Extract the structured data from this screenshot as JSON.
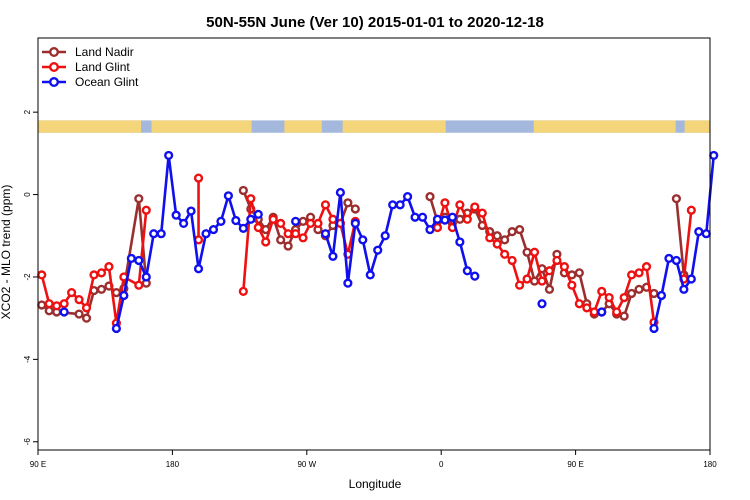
{
  "chart_data": {
    "type": "line",
    "title": "50N-55N June (Ver 10)   2015-01-01 to 2020-12-18",
    "xlabel": "Longitude",
    "ylabel": "XCO2 - MLO trend (ppm)",
    "ylim": [
      -6.2,
      3.8
    ],
    "xlim_degrees_east_from_90E": [
      0,
      450
    ],
    "x_ticks": [
      {
        "pos": 0,
        "label": "90 E"
      },
      {
        "pos": 90,
        "label": "180"
      },
      {
        "pos": 180,
        "label": "90 W"
      },
      {
        "pos": 270,
        "label": "0"
      },
      {
        "pos": 360,
        "label": "90 E"
      },
      {
        "pos": 450,
        "label": "180"
      }
    ],
    "y_ticks": [
      -6,
      -4,
      -2,
      0,
      2
    ],
    "grid": false,
    "legend": "top-left",
    "landmask_band": {
      "y_range": [
        1.5,
        1.8
      ],
      "ocean_color": "#a3b8dc",
      "land_color": "#f5d57a",
      "land_segments": [
        [
          0,
          69
        ],
        [
          76,
          143
        ],
        [
          165,
          190
        ],
        [
          204,
          273
        ],
        [
          332,
          427
        ],
        [
          433,
          450
        ]
      ]
    },
    "series": [
      {
        "name": "Land Nadir",
        "color": "#9b2f2f",
        "segments": [
          [
            [
              2.5,
              -2.68
            ],
            [
              7.5,
              -2.82
            ],
            [
              12.5,
              -2.85
            ],
            [
              27.5,
              -2.9
            ],
            [
              32.5,
              -3.0
            ],
            [
              37.5,
              -2.33
            ],
            [
              42.5,
              -2.3
            ],
            [
              47.5,
              -2.22
            ],
            [
              52.5,
              -2.38
            ],
            [
              57.5,
              -2.28
            ],
            [
              67.5,
              -0.1
            ],
            [
              72.5,
              -2.15
            ]
          ],
          [
            [
              137.5,
              0.1
            ],
            [
              142.5,
              -0.35
            ],
            [
              147.5,
              -0.6
            ],
            [
              152.5,
              -0.85
            ],
            [
              157.5,
              -0.55
            ],
            [
              162.5,
              -1.1
            ],
            [
              167.5,
              -1.25
            ],
            [
              172.5,
              -0.85
            ],
            [
              177.5,
              -0.65
            ],
            [
              182.5,
              -0.55
            ],
            [
              187.5,
              -0.85
            ],
            [
              192.5,
              -1.0
            ],
            [
              197.5,
              -0.75
            ],
            [
              202.5,
              -0.7
            ],
            [
              207.5,
              -0.2
            ],
            [
              212.5,
              -0.35
            ]
          ],
          [
            [
              262.5,
              -0.05
            ],
            [
              267.5,
              -0.65
            ],
            [
              272.5,
              -0.55
            ],
            [
              277.5,
              -0.7
            ],
            [
              282.5,
              -0.6
            ],
            [
              287.5,
              -0.45
            ],
            [
              292.5,
              -0.35
            ],
            [
              297.5,
              -0.75
            ],
            [
              302.5,
              -0.9
            ],
            [
              307.5,
              -1.0
            ],
            [
              312.5,
              -1.1
            ],
            [
              317.5,
              -0.9
            ],
            [
              322.5,
              -0.85
            ],
            [
              327.5,
              -1.4
            ],
            [
              332.5,
              -2.1
            ],
            [
              337.5,
              -1.8
            ],
            [
              342.5,
              -2.3
            ],
            [
              347.5,
              -1.45
            ],
            [
              352.5,
              -1.9
            ],
            [
              357.5,
              -1.95
            ],
            [
              362.5,
              -1.9
            ],
            [
              367.5,
              -2.65
            ],
            [
              372.5,
              -2.9
            ],
            [
              377.5,
              -2.85
            ],
            [
              382.5,
              -2.65
            ],
            [
              387.5,
              -2.9
            ],
            [
              392.5,
              -2.95
            ],
            [
              397.5,
              -2.4
            ],
            [
              402.5,
              -2.3
            ],
            [
              407.5,
              -2.25
            ],
            [
              412.5,
              -2.4
            ]
          ],
          [
            [
              427.5,
              -0.1
            ],
            [
              432.5,
              -1.95
            ]
          ]
        ]
      },
      {
        "name": "Land Glint",
        "color": "#ee1111",
        "segments": [
          [
            [
              2.5,
              -1.95
            ],
            [
              7.5,
              -2.65
            ],
            [
              12.5,
              -2.7
            ],
            [
              17.5,
              -2.65
            ],
            [
              22.5,
              -2.38
            ],
            [
              27.5,
              -2.55
            ],
            [
              32.5,
              -2.75
            ],
            [
              37.5,
              -1.95
            ],
            [
              42.5,
              -1.9
            ],
            [
              47.5,
              -1.75
            ],
            [
              52.5,
              -3.12
            ],
            [
              57.5,
              -2.0
            ],
            [
              67.5,
              -2.2
            ],
            [
              72.5,
              -0.38
            ]
          ],
          [
            [
              107.5,
              -1.1
            ],
            [
              107.5,
              0.4
            ]
          ],
          [
            [
              137.5,
              -2.35
            ],
            [
              142.5,
              -0.1
            ],
            [
              147.5,
              -0.8
            ],
            [
              152.5,
              -1.15
            ],
            [
              157.5,
              -0.6
            ],
            [
              162.5,
              -0.7
            ],
            [
              167.5,
              -0.95
            ],
            [
              172.5,
              -0.95
            ],
            [
              177.5,
              -1.05
            ],
            [
              182.5,
              -0.7
            ],
            [
              187.5,
              -0.7
            ],
            [
              192.5,
              -0.25
            ],
            [
              197.5,
              -0.6
            ],
            [
              202.5,
              -0.7
            ],
            [
              207.5,
              -1.45
            ],
            [
              212.5,
              -0.65
            ]
          ],
          [
            [
              267.5,
              -0.8
            ],
            [
              272.5,
              -0.2
            ],
            [
              277.5,
              -0.8
            ],
            [
              282.5,
              -0.25
            ],
            [
              287.5,
              -0.6
            ],
            [
              292.5,
              -0.3
            ],
            [
              297.5,
              -0.45
            ],
            [
              302.5,
              -1.05
            ],
            [
              307.5,
              -1.2
            ],
            [
              312.5,
              -1.45
            ],
            [
              317.5,
              -1.6
            ],
            [
              322.5,
              -2.2
            ],
            [
              327.5,
              -2.05
            ],
            [
              332.5,
              -1.4
            ],
            [
              337.5,
              -2.1
            ],
            [
              342.5,
              -1.85
            ],
            [
              347.5,
              -1.6
            ],
            [
              352.5,
              -1.75
            ],
            [
              357.5,
              -2.2
            ],
            [
              362.5,
              -2.65
            ],
            [
              367.5,
              -2.75
            ],
            [
              372.5,
              -2.85
            ],
            [
              377.5,
              -2.35
            ],
            [
              382.5,
              -2.5
            ],
            [
              387.5,
              -2.85
            ],
            [
              392.5,
              -2.5
            ],
            [
              397.5,
              -1.95
            ],
            [
              402.5,
              -1.9
            ],
            [
              407.5,
              -1.75
            ],
            [
              412.5,
              -3.1
            ]
          ],
          [
            [
              432.5,
              -2.05
            ],
            [
              437.5,
              -0.38
            ]
          ]
        ]
      },
      {
        "name": "Ocean Glint",
        "color": "#1010ee",
        "segments": [
          [
            [
              17.5,
              -2.85
            ]
          ],
          [
            [
              52.5,
              -3.25
            ],
            [
              57.5,
              -2.45
            ],
            [
              62.5,
              -1.55
            ],
            [
              67.5,
              -1.6
            ],
            [
              72.5,
              -2.0
            ],
            [
              77.5,
              -0.95
            ],
            [
              82.5,
              -0.95
            ],
            [
              87.5,
              0.95
            ],
            [
              92.5,
              -0.5
            ],
            [
              97.5,
              -0.7
            ],
            [
              102.5,
              -0.4
            ],
            [
              107.5,
              -1.8
            ],
            [
              112.5,
              -0.95
            ],
            [
              117.5,
              -0.85
            ],
            [
              122.5,
              -0.65
            ],
            [
              127.5,
              -0.03
            ],
            [
              132.5,
              -0.63
            ],
            [
              137.5,
              -0.82
            ],
            [
              142.5,
              -0.6
            ],
            [
              147.5,
              -0.48
            ]
          ],
          [
            [
              172.5,
              -0.65
            ]
          ],
          [
            [
              192.5,
              -0.95
            ],
            [
              197.5,
              -1.5
            ],
            [
              202.5,
              0.05
            ],
            [
              207.5,
              -2.15
            ],
            [
              212.5,
              -0.7
            ],
            [
              217.5,
              -1.1
            ],
            [
              222.5,
              -1.95
            ],
            [
              227.5,
              -1.35
            ],
            [
              232.5,
              -1.0
            ],
            [
              237.5,
              -0.25
            ],
            [
              242.5,
              -0.25
            ],
            [
              247.5,
              -0.05
            ],
            [
              252.5,
              -0.55
            ],
            [
              257.5,
              -0.55
            ],
            [
              262.5,
              -0.85
            ],
            [
              267.5,
              -0.6
            ],
            [
              272.5,
              -0.62
            ],
            [
              277.5,
              -0.55
            ],
            [
              282.5,
              -1.15
            ],
            [
              287.5,
              -1.85
            ],
            [
              292.5,
              -1.98
            ]
          ],
          [
            [
              337.5,
              -2.65
            ]
          ],
          [
            [
              377.5,
              -2.85
            ]
          ],
          [
            [
              412.5,
              -3.25
            ],
            [
              417.5,
              -2.45
            ],
            [
              422.5,
              -1.55
            ],
            [
              427.5,
              -1.6
            ],
            [
              432.5,
              -2.3
            ],
            [
              437.5,
              -2.05
            ],
            [
              442.5,
              -0.9
            ],
            [
              447.5,
              -0.95
            ],
            [
              452.5,
              0.95
            ]
          ]
        ]
      }
    ]
  }
}
